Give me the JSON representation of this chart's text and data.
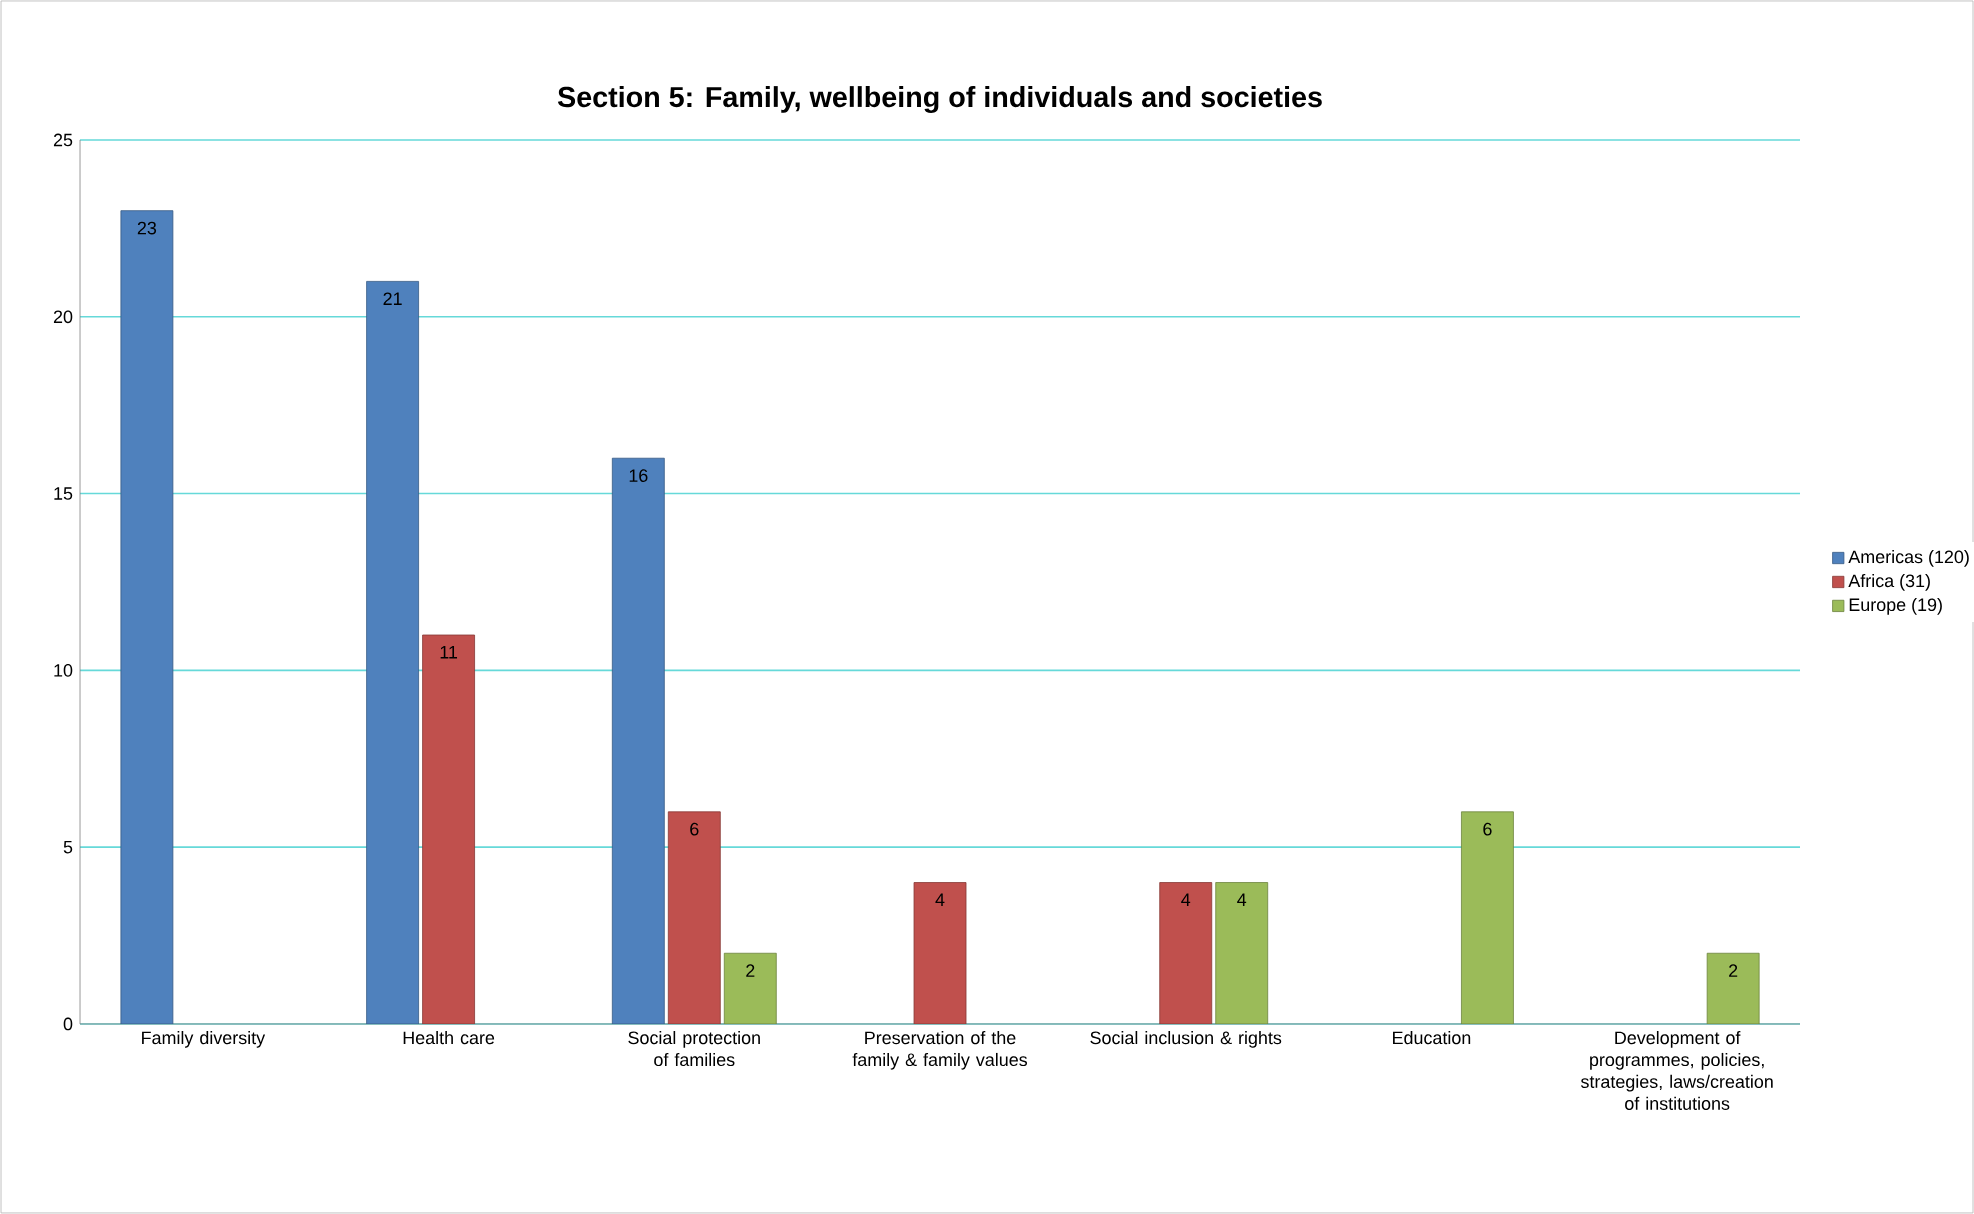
{
  "chart_data": {
    "type": "bar",
    "title": "Section 5: Family, wellbeing of individuals and societies",
    "categories": [
      "Family diversity",
      "Health care",
      "Social protection of families",
      "Preservation of the family & family values",
      "Social inclusion & rights",
      "Education",
      "Development of programmes, policies, strategies, laws/creation of institutions"
    ],
    "series": [
      {
        "name": "Americas (120)",
        "color": "#4f81bd",
        "values": [
          23,
          21,
          16,
          null,
          null,
          null,
          null
        ]
      },
      {
        "name": "Africa (31)",
        "color": "#c0504d",
        "values": [
          null,
          11,
          6,
          4,
          4,
          null,
          null
        ]
      },
      {
        "name": "Europe (19)",
        "color": "#9bbb59",
        "values": [
          null,
          null,
          2,
          null,
          4,
          6,
          2
        ]
      }
    ],
    "ylim": [
      0,
      25
    ],
    "yticks": [
      0,
      5,
      10,
      15,
      20,
      25
    ],
    "grid": "y",
    "legend": "right",
    "data_labels": true
  }
}
